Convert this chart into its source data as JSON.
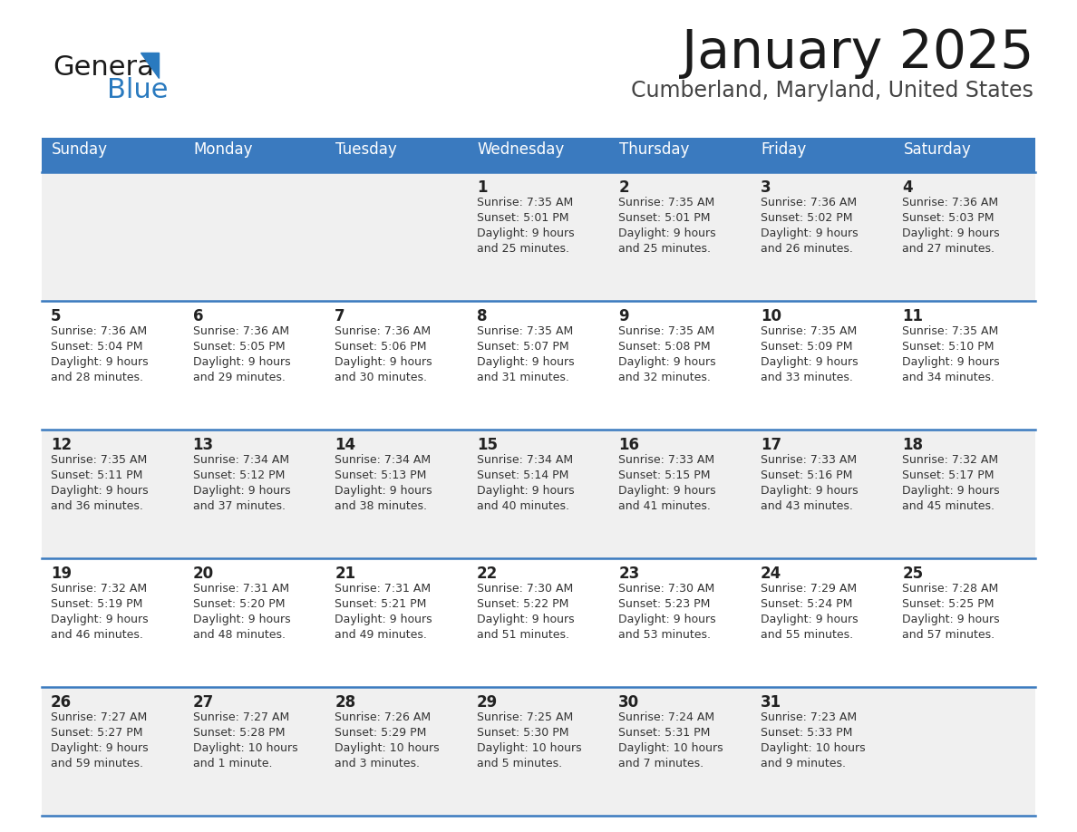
{
  "title": "January 2025",
  "subtitle": "Cumberland, Maryland, United States",
  "days_of_week": [
    "Sunday",
    "Monday",
    "Tuesday",
    "Wednesday",
    "Thursday",
    "Friday",
    "Saturday"
  ],
  "header_bg": "#3a7abf",
  "header_text_color": "#ffffff",
  "cell_bg_odd": "#f0f0f0",
  "cell_bg_even": "#ffffff",
  "day_number_color": "#222222",
  "cell_text_color": "#333333",
  "title_color": "#1a1a1a",
  "subtitle_color": "#444444",
  "logo_general_color": "#1a1a1a",
  "logo_blue_color": "#2a7abf",
  "divider_color": "#3a7abf",
  "calendar_data": [
    [
      {
        "day": "",
        "sunrise": "",
        "sunset": "",
        "daylight_line1": "",
        "daylight_line2": ""
      },
      {
        "day": "",
        "sunrise": "",
        "sunset": "",
        "daylight_line1": "",
        "daylight_line2": ""
      },
      {
        "day": "",
        "sunrise": "",
        "sunset": "",
        "daylight_line1": "",
        "daylight_line2": ""
      },
      {
        "day": "1",
        "sunrise": "7:35 AM",
        "sunset": "5:01 PM",
        "daylight_line1": "Daylight: 9 hours",
        "daylight_line2": "and 25 minutes."
      },
      {
        "day": "2",
        "sunrise": "7:35 AM",
        "sunset": "5:01 PM",
        "daylight_line1": "Daylight: 9 hours",
        "daylight_line2": "and 25 minutes."
      },
      {
        "day": "3",
        "sunrise": "7:36 AM",
        "sunset": "5:02 PM",
        "daylight_line1": "Daylight: 9 hours",
        "daylight_line2": "and 26 minutes."
      },
      {
        "day": "4",
        "sunrise": "7:36 AM",
        "sunset": "5:03 PM",
        "daylight_line1": "Daylight: 9 hours",
        "daylight_line2": "and 27 minutes."
      }
    ],
    [
      {
        "day": "5",
        "sunrise": "7:36 AM",
        "sunset": "5:04 PM",
        "daylight_line1": "Daylight: 9 hours",
        "daylight_line2": "and 28 minutes."
      },
      {
        "day": "6",
        "sunrise": "7:36 AM",
        "sunset": "5:05 PM",
        "daylight_line1": "Daylight: 9 hours",
        "daylight_line2": "and 29 minutes."
      },
      {
        "day": "7",
        "sunrise": "7:36 AM",
        "sunset": "5:06 PM",
        "daylight_line1": "Daylight: 9 hours",
        "daylight_line2": "and 30 minutes."
      },
      {
        "day": "8",
        "sunrise": "7:35 AM",
        "sunset": "5:07 PM",
        "daylight_line1": "Daylight: 9 hours",
        "daylight_line2": "and 31 minutes."
      },
      {
        "day": "9",
        "sunrise": "7:35 AM",
        "sunset": "5:08 PM",
        "daylight_line1": "Daylight: 9 hours",
        "daylight_line2": "and 32 minutes."
      },
      {
        "day": "10",
        "sunrise": "7:35 AM",
        "sunset": "5:09 PM",
        "daylight_line1": "Daylight: 9 hours",
        "daylight_line2": "and 33 minutes."
      },
      {
        "day": "11",
        "sunrise": "7:35 AM",
        "sunset": "5:10 PM",
        "daylight_line1": "Daylight: 9 hours",
        "daylight_line2": "and 34 minutes."
      }
    ],
    [
      {
        "day": "12",
        "sunrise": "7:35 AM",
        "sunset": "5:11 PM",
        "daylight_line1": "Daylight: 9 hours",
        "daylight_line2": "and 36 minutes."
      },
      {
        "day": "13",
        "sunrise": "7:34 AM",
        "sunset": "5:12 PM",
        "daylight_line1": "Daylight: 9 hours",
        "daylight_line2": "and 37 minutes."
      },
      {
        "day": "14",
        "sunrise": "7:34 AM",
        "sunset": "5:13 PM",
        "daylight_line1": "Daylight: 9 hours",
        "daylight_line2": "and 38 minutes."
      },
      {
        "day": "15",
        "sunrise": "7:34 AM",
        "sunset": "5:14 PM",
        "daylight_line1": "Daylight: 9 hours",
        "daylight_line2": "and 40 minutes."
      },
      {
        "day": "16",
        "sunrise": "7:33 AM",
        "sunset": "5:15 PM",
        "daylight_line1": "Daylight: 9 hours",
        "daylight_line2": "and 41 minutes."
      },
      {
        "day": "17",
        "sunrise": "7:33 AM",
        "sunset": "5:16 PM",
        "daylight_line1": "Daylight: 9 hours",
        "daylight_line2": "and 43 minutes."
      },
      {
        "day": "18",
        "sunrise": "7:32 AM",
        "sunset": "5:17 PM",
        "daylight_line1": "Daylight: 9 hours",
        "daylight_line2": "and 45 minutes."
      }
    ],
    [
      {
        "day": "19",
        "sunrise": "7:32 AM",
        "sunset": "5:19 PM",
        "daylight_line1": "Daylight: 9 hours",
        "daylight_line2": "and 46 minutes."
      },
      {
        "day": "20",
        "sunrise": "7:31 AM",
        "sunset": "5:20 PM",
        "daylight_line1": "Daylight: 9 hours",
        "daylight_line2": "and 48 minutes."
      },
      {
        "day": "21",
        "sunrise": "7:31 AM",
        "sunset": "5:21 PM",
        "daylight_line1": "Daylight: 9 hours",
        "daylight_line2": "and 49 minutes."
      },
      {
        "day": "22",
        "sunrise": "7:30 AM",
        "sunset": "5:22 PM",
        "daylight_line1": "Daylight: 9 hours",
        "daylight_line2": "and 51 minutes."
      },
      {
        "day": "23",
        "sunrise": "7:30 AM",
        "sunset": "5:23 PM",
        "daylight_line1": "Daylight: 9 hours",
        "daylight_line2": "and 53 minutes."
      },
      {
        "day": "24",
        "sunrise": "7:29 AM",
        "sunset": "5:24 PM",
        "daylight_line1": "Daylight: 9 hours",
        "daylight_line2": "and 55 minutes."
      },
      {
        "day": "25",
        "sunrise": "7:28 AM",
        "sunset": "5:25 PM",
        "daylight_line1": "Daylight: 9 hours",
        "daylight_line2": "and 57 minutes."
      }
    ],
    [
      {
        "day": "26",
        "sunrise": "7:27 AM",
        "sunset": "5:27 PM",
        "daylight_line1": "Daylight: 9 hours",
        "daylight_line2": "and 59 minutes."
      },
      {
        "day": "27",
        "sunrise": "7:27 AM",
        "sunset": "5:28 PM",
        "daylight_line1": "Daylight: 10 hours",
        "daylight_line2": "and 1 minute."
      },
      {
        "day": "28",
        "sunrise": "7:26 AM",
        "sunset": "5:29 PM",
        "daylight_line1": "Daylight: 10 hours",
        "daylight_line2": "and 3 minutes."
      },
      {
        "day": "29",
        "sunrise": "7:25 AM",
        "sunset": "5:30 PM",
        "daylight_line1": "Daylight: 10 hours",
        "daylight_line2": "and 5 minutes."
      },
      {
        "day": "30",
        "sunrise": "7:24 AM",
        "sunset": "5:31 PM",
        "daylight_line1": "Daylight: 10 hours",
        "daylight_line2": "and 7 minutes."
      },
      {
        "day": "31",
        "sunrise": "7:23 AM",
        "sunset": "5:33 PM",
        "daylight_line1": "Daylight: 10 hours",
        "daylight_line2": "and 9 minutes."
      },
      {
        "day": "",
        "sunrise": "",
        "sunset": "",
        "daylight_line1": "",
        "daylight_line2": ""
      }
    ]
  ]
}
